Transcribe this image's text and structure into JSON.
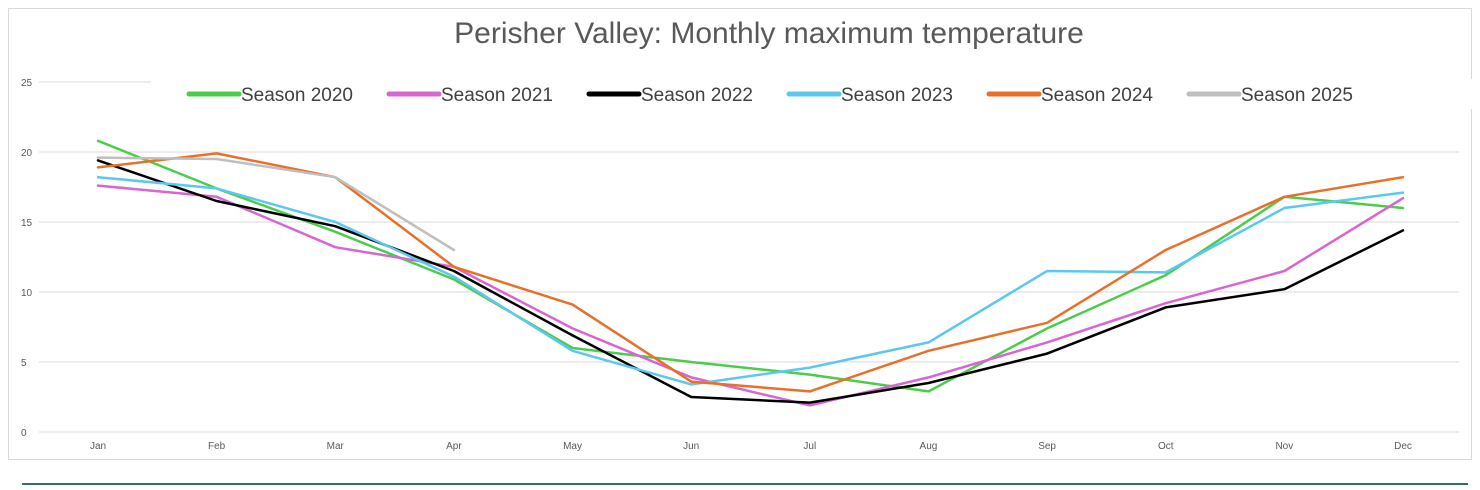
{
  "chart_data": {
    "type": "line",
    "title": "Perisher Valley: Monthly maximum temperature",
    "xlabel": "",
    "ylabel": "",
    "categories": [
      "Jan",
      "Feb",
      "Mar",
      "Apr",
      "May",
      "Jun",
      "Jul",
      "Aug",
      "Sep",
      "Oct",
      "Nov",
      "Dec"
    ],
    "ylim": [
      0,
      25
    ],
    "yticks": [
      0,
      5,
      10,
      15,
      20,
      25
    ],
    "grid": true,
    "legend": "top",
    "series": [
      {
        "name": "Season 2020",
        "color": "#4ccc4c",
        "values": [
          20.8,
          17.4,
          14.3,
          10.9,
          6.0,
          5.0,
          4.1,
          2.9,
          7.4,
          11.2,
          16.8,
          16.0
        ]
      },
      {
        "name": "Season 2021",
        "color": "#d865d3",
        "values": [
          17.6,
          16.8,
          13.2,
          11.8,
          7.4,
          3.9,
          1.9,
          3.9,
          6.4,
          9.2,
          11.5,
          16.7
        ]
      },
      {
        "name": "Season 2022",
        "color": "#000000",
        "values": [
          19.4,
          16.5,
          14.7,
          11.5,
          6.9,
          2.5,
          2.1,
          3.5,
          5.6,
          8.9,
          10.2,
          14.4
        ]
      },
      {
        "name": "Season 2023",
        "color": "#5cc8f0",
        "values": [
          18.2,
          17.4,
          15.0,
          11.1,
          5.8,
          3.4,
          4.6,
          6.4,
          11.5,
          11.4,
          16.0,
          17.1
        ]
      },
      {
        "name": "Season 2024",
        "color": "#e8702a",
        "values": [
          18.9,
          19.9,
          18.2,
          11.8,
          9.1,
          3.6,
          2.9,
          5.8,
          7.8,
          13.0,
          16.8,
          18.2
        ]
      },
      {
        "name": "Season 2025",
        "color": "#bfbfbf",
        "values": [
          19.6,
          19.5,
          18.2,
          13.0,
          null,
          null,
          null,
          null,
          null,
          null,
          null,
          null
        ]
      }
    ]
  }
}
